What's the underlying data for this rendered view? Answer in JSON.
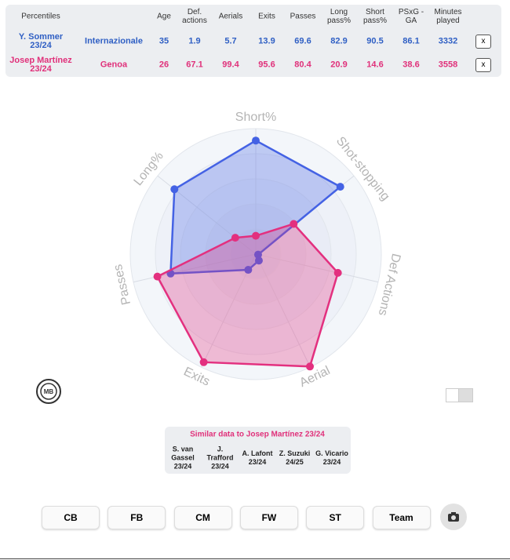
{
  "table": {
    "header": [
      "Percentiles",
      "Age",
      "Def. actions",
      "Aerials",
      "Exits",
      "Passes",
      "Long pass%",
      "Short pass%",
      "PSxG - GA",
      "Minutes played"
    ],
    "rows": [
      {
        "player": "Y. Sommer 23/24",
        "team": "Internazionale",
        "stats": [
          35,
          1.9,
          5.7,
          13.9,
          69.6,
          82.9,
          90.5,
          86.1,
          3332
        ],
        "remove": "x",
        "color": "#2f5fc4"
      },
      {
        "player": "Josep Martínez 23/24",
        "team": "Genoa",
        "stats": [
          26,
          67.1,
          99.4,
          95.6,
          80.4,
          20.9,
          14.6,
          38.6,
          3558
        ],
        "remove": "x",
        "color": "#e0307a"
      }
    ]
  },
  "chart_data": {
    "type": "radar",
    "axes": [
      "Short%",
      "Shot-stopping",
      "Def Actions",
      "Aerial",
      "Exits",
      "Passes",
      "Long%"
    ],
    "rlim": [
      0,
      100
    ],
    "series": [
      {
        "color": "#4462e4",
        "values": [
          90.5,
          86.1,
          1.9,
          5.7,
          13.9,
          69.6,
          82.9
        ]
      },
      {
        "color": "#e3307f",
        "values": [
          14.6,
          38.6,
          67.1,
          99.4,
          95.6,
          80.4,
          20.9
        ]
      }
    ]
  },
  "logo": "MB",
  "similar": {
    "title": "Similar data to Josep Martínez 23/24",
    "players": [
      "S. van Gassel 23/24",
      "J. Trafford 23/24",
      "A. Lafont 23/24",
      "Z. Suzuki 24/25",
      "G. Vicario 23/24"
    ]
  },
  "buttons": [
    "CB",
    "FB",
    "CM",
    "FW",
    "ST",
    "Team"
  ]
}
